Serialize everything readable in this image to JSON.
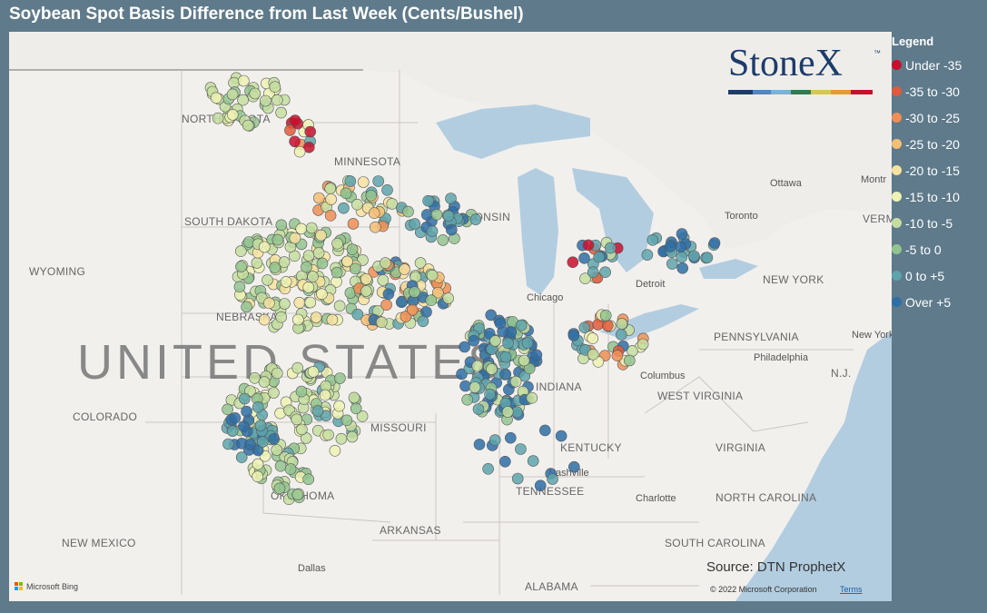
{
  "title": "Soybean Spot Basis Difference from Last Week (Cents/Bushel)",
  "legend": {
    "title": "Legend",
    "items": [
      {
        "label": "Under -35",
        "color": "#c8102e"
      },
      {
        "label": "-35 to -30",
        "color": "#e05a3b"
      },
      {
        "label": "-30 to -25",
        "color": "#f08e55"
      },
      {
        "label": "-25 to -20",
        "color": "#f5bf75"
      },
      {
        "label": "-20 to -15",
        "color": "#f7e3a0"
      },
      {
        "label": "-15 to -10",
        "color": "#eef2b3"
      },
      {
        "label": "-10 to -5",
        "color": "#c5dea0"
      },
      {
        "label": "-5 to 0",
        "color": "#93c48f"
      },
      {
        "label": "0 to +5",
        "color": "#5fa4ac"
      },
      {
        "label": "Over +5",
        "color": "#2f6fa6"
      }
    ]
  },
  "logo": {
    "name": "StoneX",
    "mark": "™"
  },
  "map_labels": [
    "NORTH DAKOTA",
    "MINNESOTA",
    "SOUTH DAKOTA",
    "WYOMING",
    "NEBRASKA",
    "COLORADO",
    "MISSOURI",
    "KENTUCKY",
    "TENNESSEE",
    "OKLAHOMA",
    "ARKANSAS",
    "NEW MEXICO",
    "ALABAMA",
    "WEST VIRGINIA",
    "VIRGINIA",
    "NORTH CAROLINA",
    "SOUTH CAROLINA",
    "PENNSYLVANIA",
    "NEW YORK",
    "WISCONSIN",
    "INDIANA",
    "VERMO",
    "N.J."
  ],
  "city_labels": [
    "Dallas",
    "Nashville",
    "Charlotte",
    "Columbus",
    "Philadelphia",
    "New York",
    "Ottawa",
    "Toronto",
    "Chicago",
    "Detroit",
    "Montr"
  ],
  "country_label": "UNITED STATES",
  "source": "Source: DTN ProphetX",
  "copyright": "© 2022 Microsoft Corporation",
  "terms": "Terms",
  "bing": "Microsoft Bing"
}
